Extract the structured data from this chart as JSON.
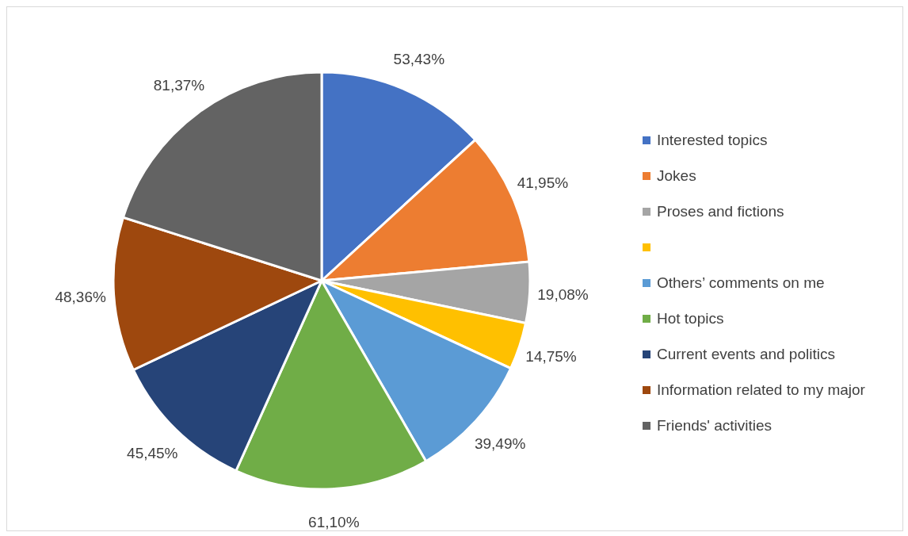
{
  "chart_data": {
    "type": "pie",
    "categories": [
      "Interested topics",
      "Jokes",
      "Proses and fictions",
      null,
      "Others’ comments on me",
      "Hot topics",
      "Current events and politics",
      "Information related to my major",
      "Friends' activities"
    ],
    "values": [
      53.43,
      41.95,
      19.08,
      14.75,
      39.49,
      61.1,
      45.45,
      48.36,
      81.37
    ],
    "colors": [
      "#4472c4",
      "#ed7d31",
      "#a5a5a5",
      "#ffc000",
      "#5b9bd5",
      "#70ad47",
      "#264478",
      "#9e480e",
      "#636363"
    ],
    "value_labels": [
      "53,43%",
      "41,95%",
      "19,08%",
      "14,75%",
      "39,49%",
      "61,10%",
      "45,45%",
      "48,36%",
      "81,37%"
    ],
    "legend": "right"
  }
}
